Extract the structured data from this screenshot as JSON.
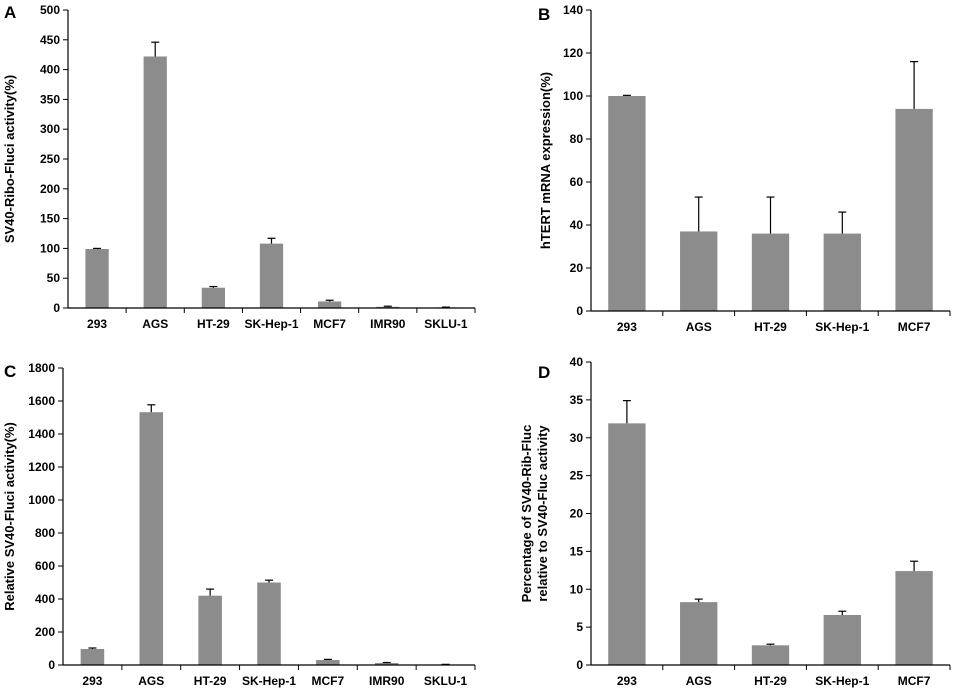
{
  "colors": {
    "bar": "#8c8c8c",
    "axis": "#000000",
    "error_bar": "#000000"
  },
  "chart_data": [
    {
      "panel": "A",
      "type": "bar",
      "categories": [
        "293",
        "AGS",
        "HT-29",
        "SK-Hep-1",
        "MCF7",
        "IMR90",
        "SKLU-1"
      ],
      "values": [
        99,
        422,
        34,
        108,
        11,
        2,
        1
      ],
      "errors": [
        1,
        24,
        2,
        9,
        2,
        1,
        0.5
      ],
      "ylabel": [
        "SV40-Ribo-Fluci activity(%)"
      ],
      "ylim": [
        0,
        500
      ],
      "yticks": [
        0,
        50,
        100,
        150,
        200,
        250,
        300,
        350,
        400,
        450,
        500
      ],
      "grid": false
    },
    {
      "panel": "B",
      "type": "bar",
      "categories": [
        "293",
        "AGS",
        "HT-29",
        "SK-Hep-1",
        "MCF7"
      ],
      "values": [
        100,
        37,
        36,
        36,
        94
      ],
      "errors": [
        0.3,
        16,
        17,
        10,
        22
      ],
      "ylabel": [
        "hTERT mRNA expression(%)"
      ],
      "ylim": [
        0,
        140
      ],
      "yticks": [
        0,
        20,
        40,
        60,
        80,
        100,
        120,
        140
      ],
      "grid": false
    },
    {
      "panel": "C",
      "type": "bar",
      "categories": [
        "293",
        "AGS",
        "HT-29",
        "SK-Hep-1",
        "MCF7",
        "IMR90",
        "SKLU-1"
      ],
      "values": [
        97,
        1532,
        420,
        500,
        30,
        12,
        3
      ],
      "errors": [
        6,
        45,
        40,
        14,
        4,
        3,
        1
      ],
      "ylabel": [
        "Relative SV40-Fluci activity(%)"
      ],
      "ylim": [
        0,
        1800
      ],
      "yticks": [
        0,
        200,
        400,
        600,
        800,
        1000,
        1200,
        1400,
        1600,
        1800
      ],
      "grid": false
    },
    {
      "panel": "D",
      "type": "bar",
      "categories": [
        "293",
        "AGS",
        "HT-29",
        "SK-Hep-1",
        "MCF7"
      ],
      "values": [
        31.9,
        8.3,
        2.6,
        6.6,
        12.4
      ],
      "errors": [
        3.0,
        0.4,
        0.15,
        0.5,
        1.3
      ],
      "ylabel": [
        "Percentage of SV40-Rib-Fluc",
        "relative to SV40-Fluc activity"
      ],
      "ylim": [
        0,
        40
      ],
      "yticks": [
        0,
        5,
        10,
        15,
        20,
        25,
        30,
        35,
        40
      ],
      "grid": false
    }
  ]
}
